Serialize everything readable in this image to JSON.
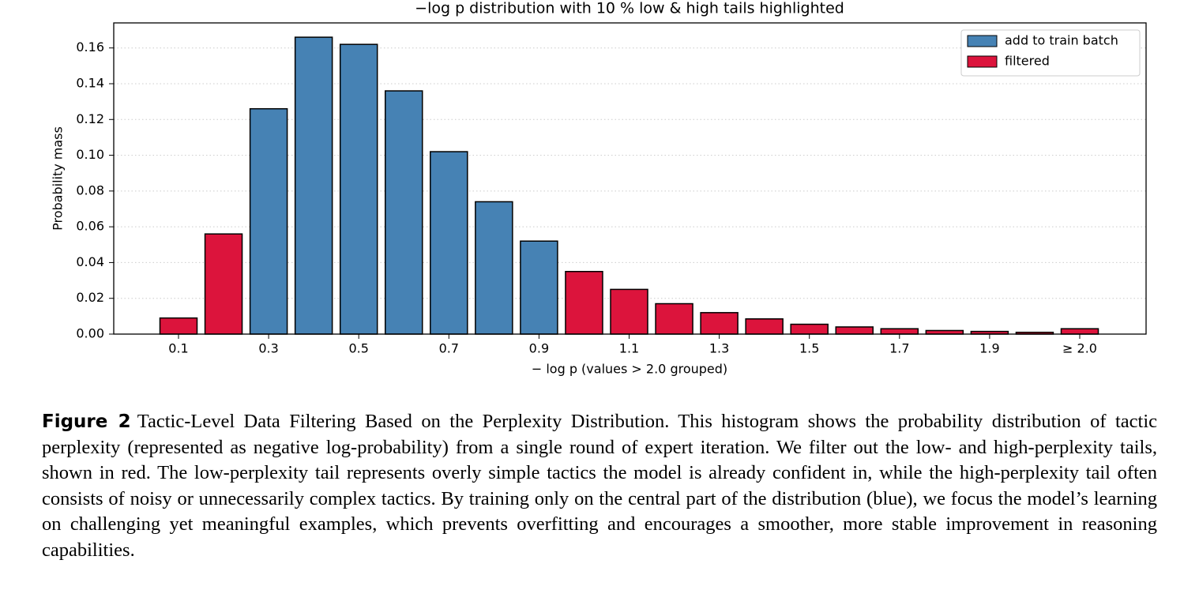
{
  "chart_data": {
    "type": "bar",
    "title": "−log p distribution with 10 % low & high tails highlighted",
    "x_label": "− log p  (values > 2.0 grouped)",
    "y_label": "Probability mass",
    "categories": [
      "0.1",
      null,
      "0.3",
      null,
      "0.5",
      null,
      "0.7",
      null,
      "0.9",
      null,
      "1.1",
      null,
      "1.3",
      null,
      "1.5",
      null,
      "1.7",
      null,
      "1.9",
      null,
      "≥ 2.0"
    ],
    "series": [
      {
        "name": "add to train batch",
        "color": "#4682b4",
        "values": [
          null,
          null,
          0.126,
          0.166,
          0.162,
          0.136,
          0.102,
          0.074,
          0.052,
          null,
          null,
          null,
          null,
          null,
          null,
          null,
          null,
          null,
          null,
          null,
          null
        ]
      },
      {
        "name": "filtered",
        "color": "#dc143c",
        "values": [
          0.009,
          0.056,
          null,
          null,
          null,
          null,
          null,
          null,
          null,
          0.035,
          0.025,
          0.017,
          0.012,
          0.0085,
          0.0055,
          0.004,
          0.003,
          0.002,
          0.0015,
          0.001,
          0.003
        ]
      }
    ],
    "ylim": [
      0,
      0.174
    ],
    "yticks": [
      {
        "value": 0,
        "label": "0.00"
      },
      {
        "value": 0.02,
        "label": "0.02"
      },
      {
        "value": 0.04,
        "label": "0.04"
      },
      {
        "value": 0.06,
        "label": "0.06"
      },
      {
        "value": 0.08,
        "label": "0.08"
      },
      {
        "value": 0.1,
        "label": "0.10"
      },
      {
        "value": 0.12,
        "label": "0.12"
      },
      {
        "value": 0.14,
        "label": "0.14"
      },
      {
        "value": 0.16,
        "label": "0.16"
      }
    ],
    "grid": true,
    "legend": "upper right"
  },
  "caption": {
    "label": "Figure 2",
    "text": "Tactic-Level Data Filtering Based on the Perplexity Distribution. This histogram shows the probability distribution of tactic perplexity (represented as negative log-probability) from a single round of expert iteration. We filter out the low- and high-perplexity tails, shown in red. The low-perplexity tail represents overly simple tactics the model is already confident in, while the high-perplexity tail often consists of noisy or unnecessarily complex tactics. By training only on the central part of the distribution (blue), we focus the model’s learning on challenging yet meaningful examples, which prevents overfitting and encourages a smoother, more stable improvement in reasoning capabilities."
  }
}
